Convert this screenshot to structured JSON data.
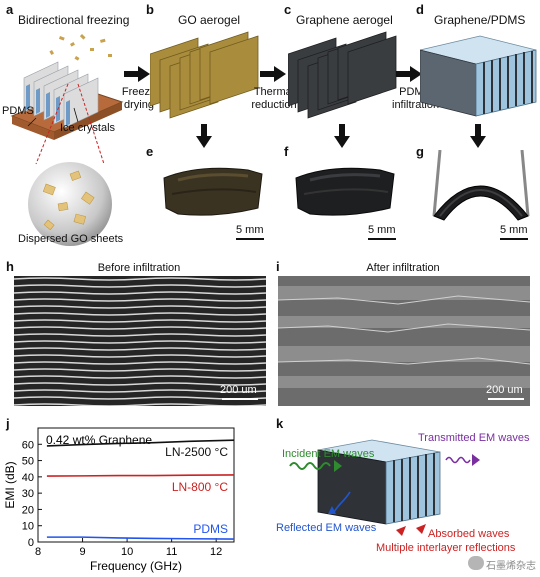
{
  "panels": {
    "a": {
      "label": "a",
      "title": "Bidirectional freezing",
      "pdms": "PDMS",
      "ice": "Ice crystals",
      "dispersed": "Dispersed GO sheets"
    },
    "b": {
      "label": "b",
      "title": "GO aerogel",
      "arrow": "Freeze drying"
    },
    "c": {
      "label": "c",
      "title": "Graphene aerogel",
      "arrow": "Thermal reduction"
    },
    "d": {
      "label": "d",
      "title": "Graphene/PDMS",
      "arrow": "PDMS infiltration"
    },
    "e": {
      "label": "e",
      "scale": "5 mm"
    },
    "f": {
      "label": "f",
      "scale": "5 mm"
    },
    "g": {
      "label": "g",
      "scale": "5 mm"
    },
    "h": {
      "label": "h",
      "title": "Before infiltration",
      "scale": "200 um"
    },
    "i": {
      "label": "i",
      "title": "After infiltration",
      "scale": "200 um"
    },
    "j": {
      "label": "j"
    },
    "k": {
      "label": "k",
      "incident": "Incident EM waves",
      "transmitted": "Transmitted EM waves",
      "reflected": "Reflected EM waves",
      "absorbed": "Absorbed waves",
      "multiple": "Multiple interlayer reflections"
    }
  },
  "watermark": {
    "text": "石墨烯杂志"
  },
  "chart_data": {
    "type": "line",
    "title": "",
    "annotation": "0.42 wt% Graphene",
    "xlabel": "Frequency (GHz)",
    "ylabel": "EMI (dB)",
    "xlim": [
      8,
      12.4
    ],
    "ylim": [
      0,
      70
    ],
    "xticks": [
      8,
      9,
      10,
      11,
      12
    ],
    "yticks": [
      0,
      10,
      20,
      30,
      40,
      50,
      60
    ],
    "x": [
      8.2,
      9.0,
      9.8,
      10.6,
      11.4,
      12.4
    ],
    "series": [
      {
        "name": "LN-2500 °C",
        "color": "#111111",
        "values": [
          59,
          59.8,
          60.5,
          61,
          61.8,
          62.5
        ]
      },
      {
        "name": "LN-800 °C",
        "color": "#cc2222",
        "values": [
          40.5,
          40.6,
          40.8,
          40.8,
          41,
          41.2
        ]
      },
      {
        "name": "PDMS",
        "color": "#2255ee",
        "values": [
          3,
          3,
          2.5,
          2.2,
          2,
          1.8
        ]
      }
    ]
  }
}
